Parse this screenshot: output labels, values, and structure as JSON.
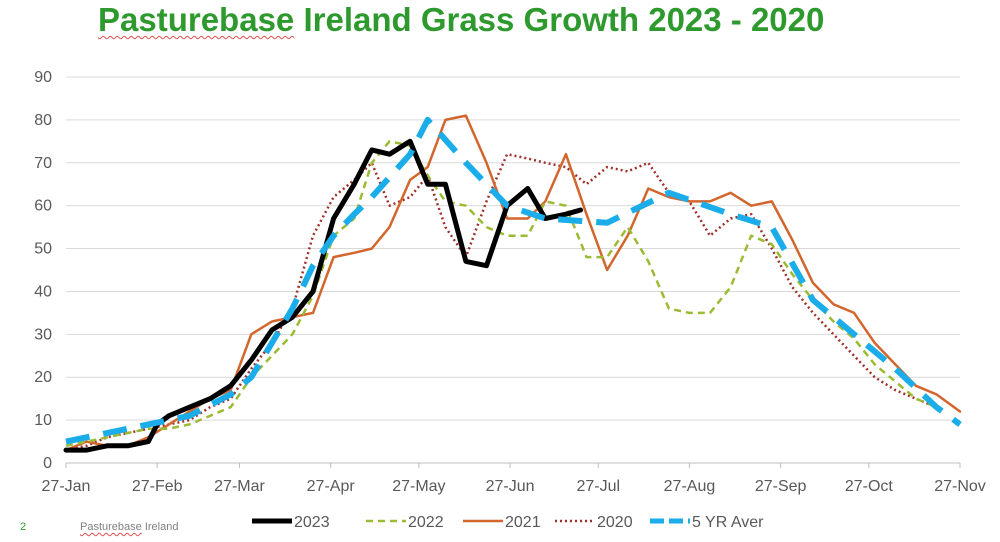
{
  "title": {
    "brand": "Pasturebase",
    "rest": " Ireland Grass Growth 2023 - 2020"
  },
  "footer": {
    "slide_number": "2",
    "brand": "Pasturebase",
    "rest": " Ireland"
  },
  "chart_data": {
    "type": "line",
    "title": "Pasturebase Ireland Grass Growth 2023 - 2020",
    "xlabel": "",
    "ylabel": "",
    "ylim": [
      0,
      90
    ],
    "yticks": [
      0,
      10,
      20,
      30,
      40,
      50,
      60,
      70,
      80,
      90
    ],
    "xlim": [
      0,
      304
    ],
    "xticks": [
      {
        "label": "27-Jan",
        "day": 0
      },
      {
        "label": "27-Feb",
        "day": 31
      },
      {
        "label": "27-Mar",
        "day": 59
      },
      {
        "label": "27-Apr",
        "day": 90
      },
      {
        "label": "27-May",
        "day": 120
      },
      {
        "label": "27-Jun",
        "day": 151
      },
      {
        "label": "27-Jul",
        "day": 181
      },
      {
        "label": "27-Aug",
        "day": 212
      },
      {
        "label": "27-Sep",
        "day": 243
      },
      {
        "label": "27-Oct",
        "day": 273
      },
      {
        "label": "27-Nov",
        "day": 304
      }
    ],
    "grid": "horizontal",
    "legend_position": "bottom",
    "series": [
      {
        "name": "2023",
        "color": "#000000",
        "style": "solid-thick",
        "points": [
          [
            0,
            3
          ],
          [
            7,
            3
          ],
          [
            14,
            4
          ],
          [
            21,
            4
          ],
          [
            28,
            5
          ],
          [
            31,
            9
          ],
          [
            35,
            11
          ],
          [
            42,
            13
          ],
          [
            49,
            15
          ],
          [
            56,
            18
          ],
          [
            63,
            24
          ],
          [
            70,
            31
          ],
          [
            77,
            34
          ],
          [
            84,
            40
          ],
          [
            91,
            57
          ],
          [
            98,
            65
          ],
          [
            104,
            73
          ],
          [
            110,
            72
          ],
          [
            117,
            75
          ],
          [
            123,
            65
          ],
          [
            129,
            65
          ],
          [
            136,
            47
          ],
          [
            143,
            46
          ],
          [
            150,
            60
          ],
          [
            157,
            64
          ],
          [
            163,
            57
          ],
          [
            170,
            58
          ],
          [
            175,
            59
          ]
        ]
      },
      {
        "name": "2022",
        "color": "#9bbb32",
        "style": "dashed",
        "points": [
          [
            0,
            4
          ],
          [
            7,
            5
          ],
          [
            14,
            6
          ],
          [
            21,
            7
          ],
          [
            28,
            8
          ],
          [
            35,
            8
          ],
          [
            42,
            9
          ],
          [
            49,
            11
          ],
          [
            56,
            13
          ],
          [
            63,
            20
          ],
          [
            70,
            25
          ],
          [
            77,
            30
          ],
          [
            84,
            39
          ],
          [
            91,
            53
          ],
          [
            98,
            57
          ],
          [
            104,
            70
          ],
          [
            110,
            75
          ],
          [
            117,
            74
          ],
          [
            123,
            67
          ],
          [
            129,
            61
          ],
          [
            136,
            60
          ],
          [
            143,
            55
          ],
          [
            150,
            53
          ],
          [
            157,
            53
          ],
          [
            163,
            61
          ],
          [
            170,
            60
          ],
          [
            177,
            48
          ],
          [
            184,
            48
          ],
          [
            191,
            55
          ],
          [
            198,
            47
          ],
          [
            205,
            36
          ],
          [
            212,
            35
          ],
          [
            219,
            35
          ],
          [
            226,
            41
          ],
          [
            233,
            53
          ],
          [
            240,
            51
          ],
          [
            247,
            44
          ],
          [
            254,
            38
          ],
          [
            261,
            33
          ],
          [
            268,
            29
          ],
          [
            275,
            23
          ],
          [
            282,
            19
          ],
          [
            289,
            15
          ],
          [
            296,
            13
          ]
        ]
      },
      {
        "name": "2021",
        "color": "#d2662d",
        "style": "solid",
        "points": [
          [
            0,
            3
          ],
          [
            7,
            5
          ],
          [
            14,
            4
          ],
          [
            21,
            4
          ],
          [
            28,
            6
          ],
          [
            35,
            9
          ],
          [
            42,
            12
          ],
          [
            49,
            15
          ],
          [
            56,
            17
          ],
          [
            63,
            30
          ],
          [
            70,
            33
          ],
          [
            77,
            34
          ],
          [
            84,
            35
          ],
          [
            91,
            48
          ],
          [
            98,
            49
          ],
          [
            104,
            50
          ],
          [
            110,
            55
          ],
          [
            117,
            66
          ],
          [
            123,
            69
          ],
          [
            129,
            80
          ],
          [
            136,
            81
          ],
          [
            143,
            70
          ],
          [
            150,
            57
          ],
          [
            157,
            57
          ],
          [
            163,
            61
          ],
          [
            170,
            72
          ],
          [
            177,
            58
          ],
          [
            184,
            45
          ],
          [
            191,
            53
          ],
          [
            198,
            64
          ],
          [
            205,
            62
          ],
          [
            212,
            61
          ],
          [
            219,
            61
          ],
          [
            226,
            63
          ],
          [
            233,
            60
          ],
          [
            240,
            61
          ],
          [
            247,
            52
          ],
          [
            254,
            42
          ],
          [
            261,
            37
          ],
          [
            268,
            35
          ],
          [
            275,
            28
          ],
          [
            282,
            23
          ],
          [
            289,
            18
          ],
          [
            296,
            16
          ],
          [
            304,
            12
          ]
        ]
      },
      {
        "name": "2020",
        "color": "#a0302a",
        "style": "dotted",
        "points": [
          [
            0,
            3
          ],
          [
            7,
            4
          ],
          [
            14,
            6
          ],
          [
            21,
            7
          ],
          [
            28,
            8
          ],
          [
            35,
            9
          ],
          [
            42,
            10
          ],
          [
            49,
            13
          ],
          [
            56,
            15
          ],
          [
            63,
            22
          ],
          [
            70,
            28
          ],
          [
            77,
            36
          ],
          [
            84,
            53
          ],
          [
            91,
            62
          ],
          [
            98,
            66
          ],
          [
            104,
            70
          ],
          [
            110,
            60
          ],
          [
            117,
            62
          ],
          [
            123,
            67
          ],
          [
            129,
            55
          ],
          [
            136,
            48
          ],
          [
            143,
            61
          ],
          [
            150,
            72
          ],
          [
            157,
            71
          ],
          [
            163,
            70
          ],
          [
            170,
            69
          ],
          [
            177,
            65
          ],
          [
            184,
            69
          ],
          [
            191,
            68
          ],
          [
            198,
            70
          ],
          [
            205,
            63
          ],
          [
            212,
            61
          ],
          [
            219,
            53
          ],
          [
            226,
            57
          ],
          [
            233,
            58
          ],
          [
            240,
            50
          ],
          [
            247,
            41
          ],
          [
            254,
            35
          ],
          [
            261,
            30
          ],
          [
            268,
            25
          ],
          [
            275,
            20
          ],
          [
            282,
            17
          ],
          [
            289,
            15
          ],
          [
            296,
            13
          ]
        ]
      },
      {
        "name": "5 YR Aver",
        "color": "#1aadea",
        "style": "longdash",
        "points": [
          [
            0,
            5
          ],
          [
            14,
            7
          ],
          [
            28,
            9
          ],
          [
            42,
            11
          ],
          [
            56,
            16
          ],
          [
            63,
            20
          ],
          [
            70,
            28
          ],
          [
            77,
            36
          ],
          [
            84,
            46
          ],
          [
            91,
            53
          ],
          [
            98,
            58
          ],
          [
            104,
            62
          ],
          [
            117,
            72
          ],
          [
            123,
            80
          ],
          [
            136,
            70
          ],
          [
            150,
            60
          ],
          [
            163,
            57
          ],
          [
            184,
            56
          ],
          [
            205,
            63
          ],
          [
            226,
            58
          ],
          [
            240,
            55
          ],
          [
            254,
            38
          ],
          [
            268,
            30
          ],
          [
            282,
            22
          ],
          [
            296,
            13
          ],
          [
            304,
            9
          ]
        ]
      }
    ]
  }
}
